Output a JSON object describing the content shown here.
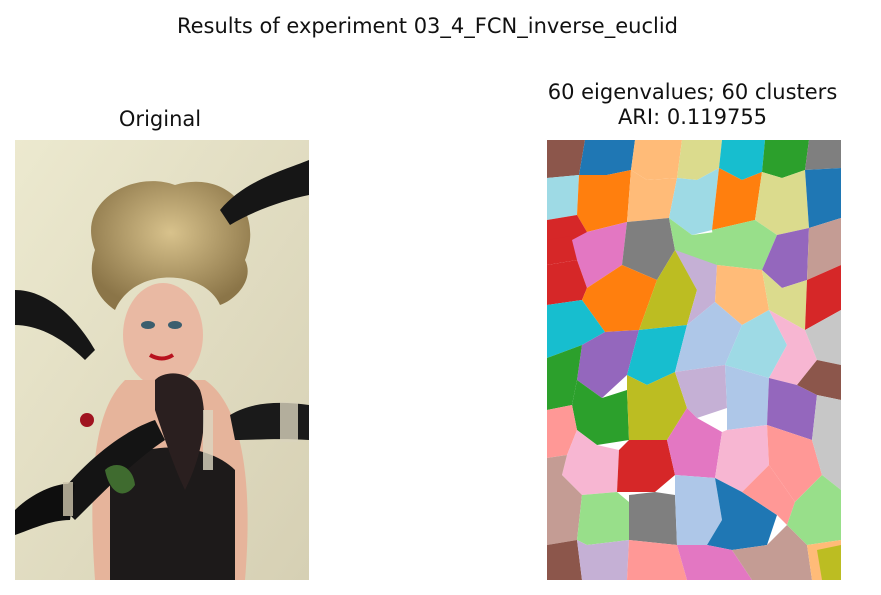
{
  "figure": {
    "suptitle": "Results of experiment 03_4_FCN_inverse_euclid",
    "left_panel": {
      "title": "Original",
      "image_description_icon": "portrait-photo"
    },
    "right_panel": {
      "title_line1": "60 eigenvalues; 60 clusters",
      "title_line2": "ARI: 0.119755",
      "image_description_icon": "segmentation-map"
    }
  },
  "colors": {
    "tab_blue": "#1f77b4",
    "tab_orange": "#ff7f0e",
    "tab_green": "#2ca02c",
    "tab_red": "#d62728",
    "tab_purple": "#9467bd",
    "tab_brown": "#8c564b",
    "tab_pink": "#e377c2",
    "tab_gray": "#7f7f7f",
    "tab_olive": "#bcbd22",
    "tab_cyan": "#17becf"
  }
}
